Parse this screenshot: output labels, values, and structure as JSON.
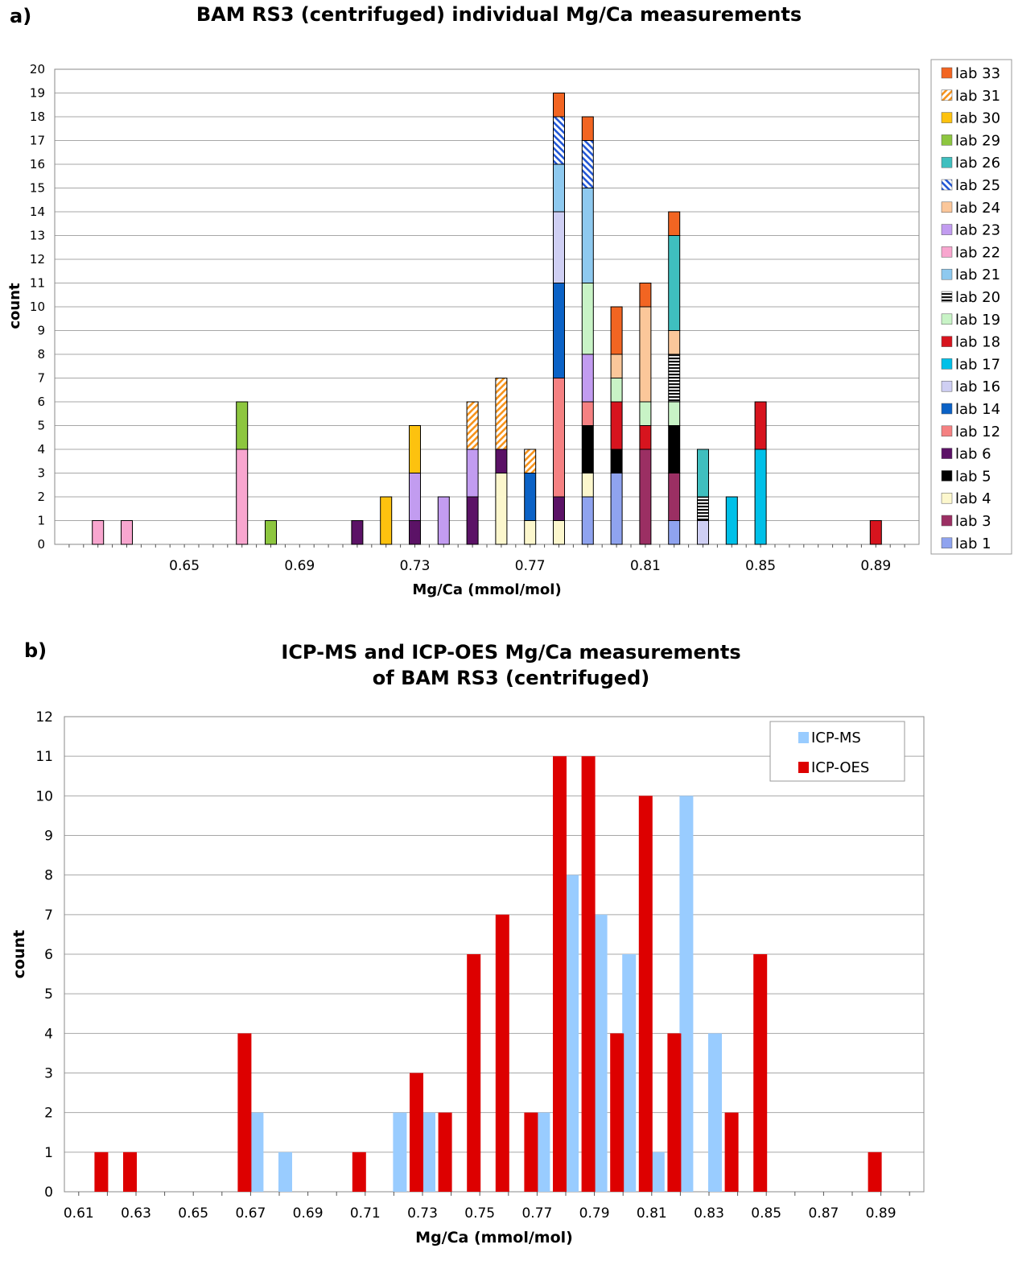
{
  "panels": {
    "a": {
      "letter": "a)",
      "title": "BAM RS3 (centrifuged) individual Mg/Ca measurements"
    },
    "b": {
      "letter": "b)",
      "title_line1": "ICP-MS and ICP-OES Mg/Ca measurements",
      "title_line2": "of BAM RS3 (centrifuged)"
    }
  },
  "chart_data": [
    {
      "type": "bar",
      "stacked": true,
      "title": "BAM RS3 (centrifuged) individual Mg/Ca measurements",
      "xlabel": "Mg/Ca (mmol/mol)",
      "ylabel": "count",
      "ylim": [
        0,
        20
      ],
      "yticks": [
        0,
        1,
        2,
        3,
        4,
        5,
        6,
        7,
        8,
        9,
        10,
        11,
        12,
        13,
        14,
        15,
        16,
        17,
        18,
        19,
        20
      ],
      "xlim": [
        0.605,
        0.905
      ],
      "xtick_labels": [
        "0.65",
        "0.69",
        "0.73",
        "0.77",
        "0.81",
        "0.85",
        "0.89"
      ],
      "xtick_values": [
        0.65,
        0.69,
        0.73,
        0.77,
        0.81,
        0.85,
        0.89
      ],
      "grid": "horizontal",
      "legend_position": "right",
      "legend": [
        {
          "id": "lab33",
          "label": "lab 33",
          "color": "#f26522",
          "pattern": "solid"
        },
        {
          "id": "lab31",
          "label": "lab 31",
          "color": "#f7941d",
          "pattern": "diag"
        },
        {
          "id": "lab30",
          "label": "lab 30",
          "color": "#fdc20f",
          "pattern": "solid"
        },
        {
          "id": "lab29",
          "label": "lab 29",
          "color": "#8dc63f",
          "pattern": "solid"
        },
        {
          "id": "lab26",
          "label": "lab 26",
          "color": "#3fbfbf",
          "pattern": "solid"
        },
        {
          "id": "lab25",
          "label": "lab 25",
          "color": "#2458d6",
          "pattern": "diagback"
        },
        {
          "id": "lab24",
          "label": "lab 24",
          "color": "#fbc79a",
          "pattern": "solid"
        },
        {
          "id": "lab23",
          "label": "lab 23",
          "color": "#c29cf0",
          "pattern": "solid"
        },
        {
          "id": "lab22",
          "label": "lab 22",
          "color": "#f8a6cf",
          "pattern": "solid"
        },
        {
          "id": "lab21",
          "label": "lab 21",
          "color": "#8ec9ef",
          "pattern": "solid"
        },
        {
          "id": "lab20",
          "label": "lab 20",
          "color": "#111111",
          "pattern": "hlines"
        },
        {
          "id": "lab19",
          "label": "lab 19",
          "color": "#c8f3c6",
          "pattern": "solid"
        },
        {
          "id": "lab18",
          "label": "lab 18",
          "color": "#d7141e",
          "pattern": "solid"
        },
        {
          "id": "lab17",
          "label": "lab 17",
          "color": "#00c0e8",
          "pattern": "solid"
        },
        {
          "id": "lab16",
          "label": "lab 16",
          "color": "#cfcff3",
          "pattern": "solid"
        },
        {
          "id": "lab14",
          "label": "lab 14",
          "color": "#0b62c6",
          "pattern": "solid"
        },
        {
          "id": "lab12",
          "label": "lab 12",
          "color": "#f58182",
          "pattern": "solid"
        },
        {
          "id": "lab6",
          "label": "lab 6",
          "color": "#5b1266",
          "pattern": "solid"
        },
        {
          "id": "lab5",
          "label": "lab 5",
          "color": "#000000",
          "pattern": "solid"
        },
        {
          "id": "lab4",
          "label": "lab 4",
          "color": "#fcf7cd",
          "pattern": "solid"
        },
        {
          "id": "lab3",
          "label": "lab 3",
          "color": "#9b2f63",
          "pattern": "solid"
        },
        {
          "id": "lab1",
          "label": "lab 1",
          "color": "#8fa3ef",
          "pattern": "solid"
        }
      ],
      "bars": [
        {
          "x": 0.62,
          "segments": [
            {
              "lab": "lab22",
              "count": 1
            }
          ]
        },
        {
          "x": 0.63,
          "segments": [
            {
              "lab": "lab22",
              "count": 1
            }
          ]
        },
        {
          "x": 0.67,
          "segments": [
            {
              "lab": "lab22",
              "count": 4
            },
            {
              "lab": "lab29",
              "count": 2
            }
          ]
        },
        {
          "x": 0.68,
          "segments": [
            {
              "lab": "lab29",
              "count": 1
            }
          ]
        },
        {
          "x": 0.71,
          "segments": [
            {
              "lab": "lab6",
              "count": 1
            }
          ]
        },
        {
          "x": 0.72,
          "segments": [
            {
              "lab": "lab30",
              "count": 2
            }
          ]
        },
        {
          "x": 0.73,
          "segments": [
            {
              "lab": "lab6",
              "count": 1
            },
            {
              "lab": "lab23",
              "count": 2
            },
            {
              "lab": "lab30",
              "count": 2
            }
          ]
        },
        {
          "x": 0.74,
          "segments": [
            {
              "lab": "lab23",
              "count": 2
            }
          ]
        },
        {
          "x": 0.75,
          "segments": [
            {
              "lab": "lab6",
              "count": 2
            },
            {
              "lab": "lab23",
              "count": 2
            },
            {
              "lab": "lab31",
              "count": 2
            }
          ]
        },
        {
          "x": 0.76,
          "segments": [
            {
              "lab": "lab4",
              "count": 3
            },
            {
              "lab": "lab6",
              "count": 1
            },
            {
              "lab": "lab31",
              "count": 3
            }
          ]
        },
        {
          "x": 0.77,
          "segments": [
            {
              "lab": "lab4",
              "count": 1
            },
            {
              "lab": "lab14",
              "count": 2
            },
            {
              "lab": "lab31",
              "count": 1
            }
          ]
        },
        {
          "x": 0.78,
          "segments": [
            {
              "lab": "lab4",
              "count": 1
            },
            {
              "lab": "lab6",
              "count": 1
            },
            {
              "lab": "lab12",
              "count": 5
            },
            {
              "lab": "lab14",
              "count": 4
            },
            {
              "lab": "lab16",
              "count": 3
            },
            {
              "lab": "lab21",
              "count": 2
            },
            {
              "lab": "lab25",
              "count": 2
            },
            {
              "lab": "lab33",
              "count": 1
            }
          ]
        },
        {
          "x": 0.79,
          "segments": [
            {
              "lab": "lab1",
              "count": 2
            },
            {
              "lab": "lab4",
              "count": 1
            },
            {
              "lab": "lab5",
              "count": 2
            },
            {
              "lab": "lab12",
              "count": 1
            },
            {
              "lab": "lab23",
              "count": 2
            },
            {
              "lab": "lab19",
              "count": 3
            },
            {
              "lab": "lab21",
              "count": 4
            },
            {
              "lab": "lab25",
              "count": 2
            },
            {
              "lab": "lab33",
              "count": 1
            }
          ]
        },
        {
          "x": 0.8,
          "segments": [
            {
              "lab": "lab1",
              "count": 3
            },
            {
              "lab": "lab5",
              "count": 1
            },
            {
              "lab": "lab18",
              "count": 2
            },
            {
              "lab": "lab19",
              "count": 1
            },
            {
              "lab": "lab24",
              "count": 1
            },
            {
              "lab": "lab33",
              "count": 2
            }
          ]
        },
        {
          "x": 0.81,
          "segments": [
            {
              "lab": "lab3",
              "count": 4
            },
            {
              "lab": "lab18",
              "count": 1
            },
            {
              "lab": "lab19",
              "count": 1
            },
            {
              "lab": "lab24",
              "count": 4
            },
            {
              "lab": "lab33",
              "count": 1
            }
          ]
        },
        {
          "x": 0.82,
          "segments": [
            {
              "lab": "lab1",
              "count": 1
            },
            {
              "lab": "lab3",
              "count": 2
            },
            {
              "lab": "lab5",
              "count": 2
            },
            {
              "lab": "lab19",
              "count": 1
            },
            {
              "lab": "lab20",
              "count": 2
            },
            {
              "lab": "lab24",
              "count": 1
            },
            {
              "lab": "lab26",
              "count": 4
            },
            {
              "lab": "lab33",
              "count": 1
            }
          ]
        },
        {
          "x": 0.83,
          "segments": [
            {
              "lab": "lab16",
              "count": 1
            },
            {
              "lab": "lab20",
              "count": 1
            },
            {
              "lab": "lab26",
              "count": 2
            }
          ]
        },
        {
          "x": 0.84,
          "segments": [
            {
              "lab": "lab17",
              "count": 2
            }
          ]
        },
        {
          "x": 0.85,
          "segments": [
            {
              "lab": "lab17",
              "count": 4
            },
            {
              "lab": "lab18",
              "count": 2
            }
          ]
        },
        {
          "x": 0.89,
          "segments": [
            {
              "lab": "lab18",
              "count": 1
            }
          ]
        }
      ]
    },
    {
      "type": "bar",
      "title": "ICP-MS and ICP-OES Mg/Ca measurements of BAM RS3 (centrifuged)",
      "xlabel": "Mg/Ca (mmol/mol)",
      "ylabel": "count",
      "ylim": [
        0,
        12
      ],
      "yticks": [
        0,
        1,
        2,
        3,
        4,
        5,
        6,
        7,
        8,
        9,
        10,
        11,
        12
      ],
      "xlim": [
        0.605,
        0.905
      ],
      "xtick_labels": [
        "0.61",
        "0.63",
        "0.65",
        "0.67",
        "0.69",
        "0.71",
        "0.73",
        "0.75",
        "0.77",
        "0.79",
        "0.81",
        "0.83",
        "0.85",
        "0.87",
        "0.89"
      ],
      "xtick_values": [
        0.61,
        0.63,
        0.65,
        0.67,
        0.69,
        0.71,
        0.73,
        0.75,
        0.77,
        0.79,
        0.81,
        0.83,
        0.85,
        0.87,
        0.89
      ],
      "grid": "horizontal",
      "legend_position": "top-right",
      "series": [
        {
          "name": "ICP-MS",
          "color": "#99ccff",
          "points": [
            [
              0.67,
              2
            ],
            [
              0.68,
              1
            ],
            [
              0.72,
              2
            ],
            [
              0.73,
              2
            ],
            [
              0.77,
              2
            ],
            [
              0.78,
              8
            ],
            [
              0.79,
              7
            ],
            [
              0.8,
              6
            ],
            [
              0.81,
              1
            ],
            [
              0.82,
              10
            ],
            [
              0.83,
              4
            ]
          ]
        },
        {
          "name": "ICP-OES",
          "color": "#dd0000",
          "points": [
            [
              0.62,
              1
            ],
            [
              0.63,
              1
            ],
            [
              0.67,
              4
            ],
            [
              0.71,
              1
            ],
            [
              0.73,
              3
            ],
            [
              0.74,
              2
            ],
            [
              0.75,
              6
            ],
            [
              0.76,
              7
            ],
            [
              0.77,
              2
            ],
            [
              0.78,
              11
            ],
            [
              0.79,
              11
            ],
            [
              0.8,
              4
            ],
            [
              0.81,
              10
            ],
            [
              0.82,
              4
            ],
            [
              0.84,
              2
            ],
            [
              0.85,
              6
            ],
            [
              0.89,
              1
            ]
          ]
        }
      ]
    }
  ]
}
